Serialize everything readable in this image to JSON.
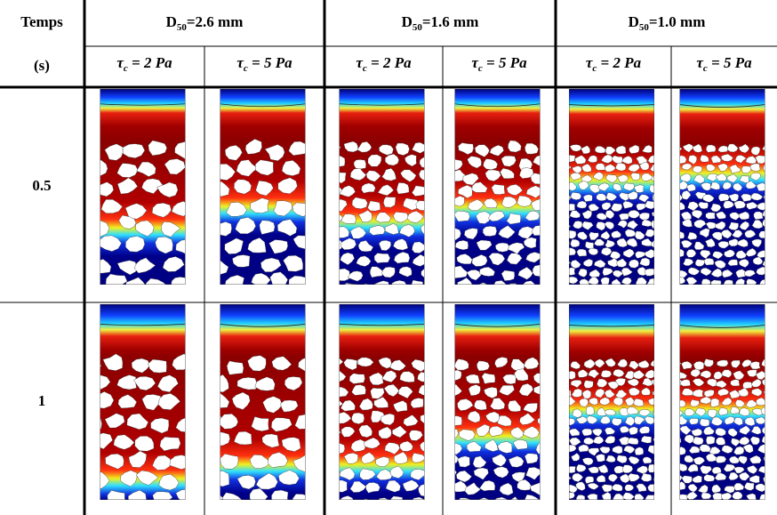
{
  "header": {
    "time_label": "Temps",
    "time_unit": "(s)",
    "groups": [
      {
        "symbol": "D",
        "subscript": "50",
        "text": "=2.6 mm"
      },
      {
        "symbol": "D",
        "subscript": "50",
        "text": "=1.6 mm"
      },
      {
        "symbol": "D",
        "subscript": "50",
        "text": "=1.0 mm"
      }
    ],
    "columns": [
      {
        "symbol": "τ",
        "subscript": "c",
        "text": " = 2 Pa"
      },
      {
        "symbol": "τ",
        "subscript": "c",
        "text": " = 5 Pa"
      },
      {
        "symbol": "τ",
        "subscript": "c",
        "text": " = 2 Pa"
      },
      {
        "symbol": "τ",
        "subscript": "c",
        "text": " = 5 Pa"
      },
      {
        "symbol": "τ",
        "subscript": "c",
        "text": " = 2 Pa"
      },
      {
        "symbol": "τ",
        "subscript": "c",
        "text": " = 5 Pa"
      }
    ]
  },
  "rows": [
    {
      "time": "0.5"
    },
    {
      "time": "1"
    }
  ]
}
